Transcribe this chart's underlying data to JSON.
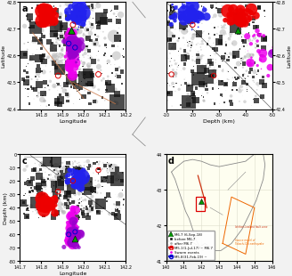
{
  "fig_bg": "#f2f2f2",
  "panel_bg": "#ffffff",
  "panel_d_bg": "#fefef0",
  "panel_a": {
    "xlabel": "Longitude",
    "ylabel": "Latitude",
    "xlim": [
      141.7,
      142.2
    ],
    "ylim": [
      42.4,
      42.8
    ],
    "xticks": [
      141.8,
      141.9,
      142.0,
      142.1,
      142.2
    ],
    "yticks": [
      42.4,
      42.5,
      42.6,
      42.7,
      42.8
    ]
  },
  "panel_b": {
    "xlabel": "Depth (km)",
    "ylabel": "Latitude",
    "xlim": [
      -10,
      -50
    ],
    "ylim": [
      42.4,
      42.8
    ],
    "xticks": [
      -10,
      -20,
      -30,
      -40,
      -50
    ],
    "yticks": [
      42.4,
      42.5,
      42.6,
      42.7,
      42.8
    ]
  },
  "panel_c": {
    "xlabel": "Longitude",
    "ylabel": "Depth (km)",
    "xlim": [
      141.7,
      142.2
    ],
    "ylim": [
      -80,
      0
    ],
    "xticks": [
      141.7,
      141.8,
      141.9,
      142.0,
      142.1,
      142.2
    ],
    "yticks": [
      0,
      -10,
      -20,
      -30,
      -40,
      -50,
      -60,
      -70,
      -80
    ]
  },
  "panel_d": {
    "xlim": [
      140,
      146
    ],
    "ylim": [
      41,
      44
    ],
    "xticks": [
      140,
      141,
      142,
      143,
      144,
      145,
      146
    ],
    "yticks": [
      41,
      42,
      43,
      44
    ]
  },
  "colors": {
    "gray": "#aaaaaa",
    "black": "#111111",
    "red": "#ee0000",
    "blue": "#2222ee",
    "magenta": "#ee00ee",
    "green": "#009900",
    "purple": "#9900cc",
    "red_open": "#dd0000",
    "blue_open": "#0000cc",
    "fault_brown": "#cc7744",
    "coast": "#888888"
  }
}
